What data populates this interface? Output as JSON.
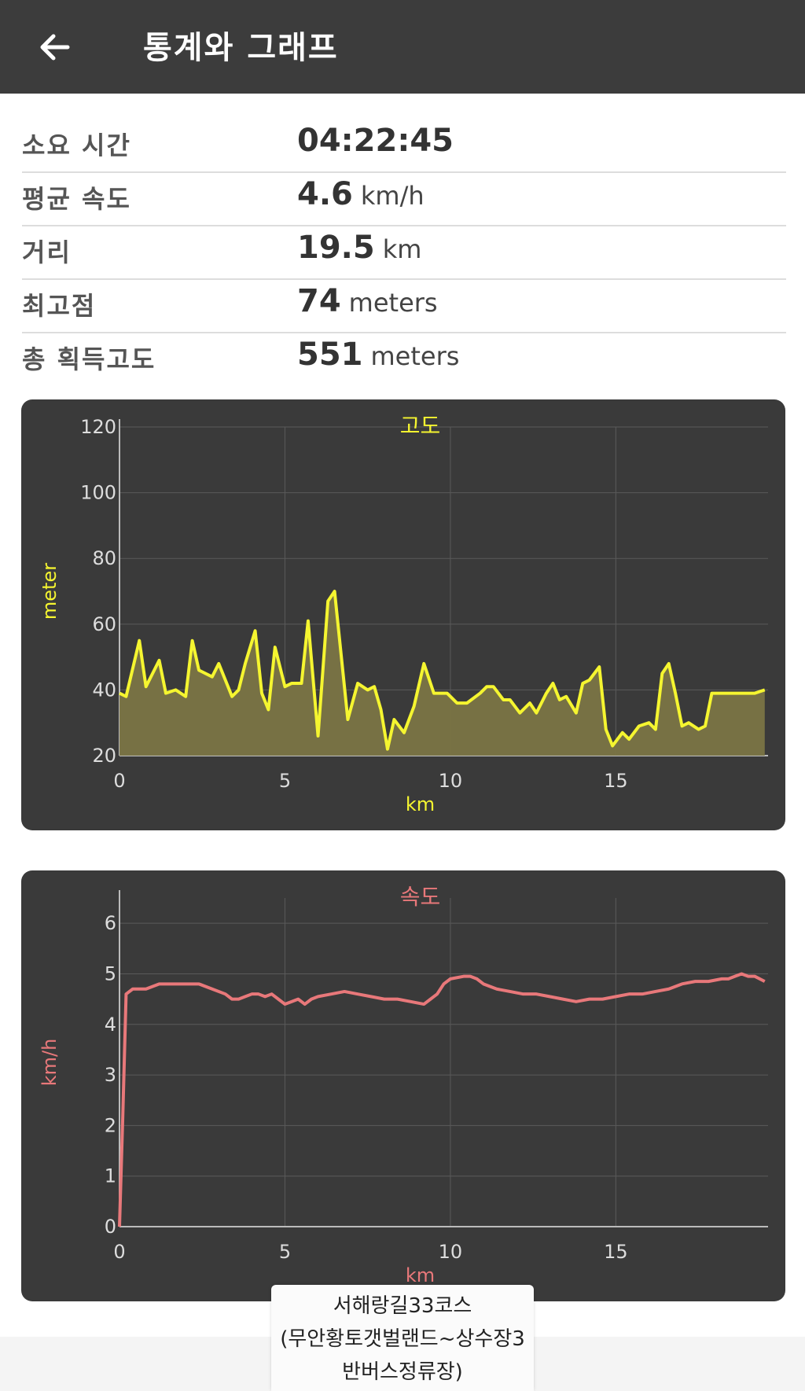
{
  "app_bar": {
    "back_icon": "arrow-left-icon",
    "title": "통계와 그래프"
  },
  "stats": [
    {
      "label": "소요 시간",
      "value": "04:22:45",
      "unit": ""
    },
    {
      "label": "평균 속도",
      "value": "4.6",
      "unit": "km/h"
    },
    {
      "label": "거리",
      "value": "19.5",
      "unit": "km"
    },
    {
      "label": "최고점",
      "value": "74",
      "unit": "meters"
    },
    {
      "label": "총 획득고도",
      "value": "551",
      "unit": "meters"
    }
  ],
  "colors": {
    "app_bar": "#3c3c3c",
    "chart_bg": "#3a3a3a",
    "elevation_line": "#f5f530",
    "elevation_fill": "#7a7444",
    "speed_line": "#e8787a"
  },
  "course_label": {
    "line1": "서해랑길33코스",
    "line2": "(무안황토갯벌랜드~상수장3",
    "line3": "반버스정류장)"
  },
  "chart_data": [
    {
      "type": "area",
      "title": "고도",
      "xlabel": "km",
      "ylabel": "meter",
      "xlim": [
        0,
        19.6
      ],
      "ylim": [
        20,
        120
      ],
      "x_ticks": [
        0,
        5,
        10,
        15
      ],
      "y_ticks": [
        20,
        40,
        60,
        80,
        100,
        120
      ],
      "grid": true,
      "series": [
        {
          "x": [
            0,
            0.2,
            0.6,
            0.8,
            1.2,
            1.4,
            1.7,
            2.0,
            2.2,
            2.4,
            2.8,
            3.0,
            3.4,
            3.6,
            3.8,
            4.1,
            4.3,
            4.5,
            4.7,
            5.0,
            5.2,
            5.5,
            5.7,
            6.0,
            6.3,
            6.5,
            6.9,
            7.2,
            7.5,
            7.7,
            7.9,
            8.1,
            8.3,
            8.6,
            8.9,
            9.2,
            9.5,
            9.9,
            10.2,
            10.5,
            10.9,
            11.1,
            11.3,
            11.6,
            11.8,
            12.1,
            12.4,
            12.6,
            12.9,
            13.1,
            13.3,
            13.5,
            13.8,
            14.0,
            14.2,
            14.5,
            14.7,
            14.9,
            15.2,
            15.4,
            15.7,
            16.0,
            16.2,
            16.4,
            16.6,
            16.8,
            17.0,
            17.2,
            17.5,
            17.7,
            17.9,
            18.2,
            18.5,
            18.7,
            18.9,
            19.2,
            19.5
          ],
          "y": [
            39,
            38,
            55,
            41,
            49,
            39,
            40,
            38,
            55,
            46,
            44,
            48,
            38,
            40,
            48,
            58,
            39,
            34,
            53,
            41,
            42,
            42,
            61,
            26,
            67,
            70,
            31,
            42,
            40,
            41,
            34,
            22,
            31,
            27,
            35,
            48,
            39,
            39,
            36,
            36,
            39,
            41,
            41,
            37,
            37,
            33,
            36,
            33,
            39,
            42,
            37,
            38,
            33,
            42,
            43,
            47,
            28,
            23,
            27,
            25,
            29,
            30,
            28,
            45,
            48,
            39,
            29,
            30,
            28,
            29,
            39,
            39,
            39,
            39,
            39,
            39,
            40
          ]
        }
      ]
    },
    {
      "type": "line",
      "title": "속도",
      "xlabel": "km",
      "ylabel": "km/h",
      "xlim": [
        0,
        19.6
      ],
      "ylim": [
        0,
        6.5
      ],
      "x_ticks": [
        0,
        5,
        10,
        15
      ],
      "y_ticks": [
        0,
        1,
        2,
        3,
        4,
        5,
        6
      ],
      "grid": true,
      "series": [
        {
          "x": [
            0,
            0.1,
            0.2,
            0.4,
            0.8,
            1.2,
            1.6,
            2.0,
            2.4,
            2.8,
            3.2,
            3.4,
            3.6,
            3.8,
            4.0,
            4.2,
            4.4,
            4.6,
            4.8,
            5.0,
            5.2,
            5.4,
            5.6,
            5.8,
            6.0,
            6.4,
            6.8,
            7.2,
            7.6,
            8.0,
            8.4,
            8.8,
            9.2,
            9.4,
            9.6,
            9.8,
            10.0,
            10.4,
            10.6,
            10.8,
            11.0,
            11.4,
            11.8,
            12.2,
            12.6,
            13.0,
            13.4,
            13.8,
            14.2,
            14.6,
            15.0,
            15.4,
            15.8,
            16.2,
            16.6,
            17.0,
            17.4,
            17.8,
            18.2,
            18.4,
            18.6,
            18.8,
            19.0,
            19.2,
            19.5
          ],
          "y": [
            0,
            2.2,
            4.6,
            4.7,
            4.7,
            4.8,
            4.8,
            4.8,
            4.8,
            4.7,
            4.6,
            4.5,
            4.5,
            4.55,
            4.6,
            4.6,
            4.55,
            4.6,
            4.5,
            4.4,
            4.45,
            4.5,
            4.4,
            4.5,
            4.55,
            4.6,
            4.65,
            4.6,
            4.55,
            4.5,
            4.5,
            4.45,
            4.4,
            4.5,
            4.6,
            4.8,
            4.9,
            4.95,
            4.95,
            4.9,
            4.8,
            4.7,
            4.65,
            4.6,
            4.6,
            4.55,
            4.5,
            4.45,
            4.5,
            4.5,
            4.55,
            4.6,
            4.6,
            4.65,
            4.7,
            4.8,
            4.85,
            4.85,
            4.9,
            4.9,
            4.95,
            5.0,
            4.95,
            4.95,
            4.85
          ]
        }
      ]
    }
  ]
}
